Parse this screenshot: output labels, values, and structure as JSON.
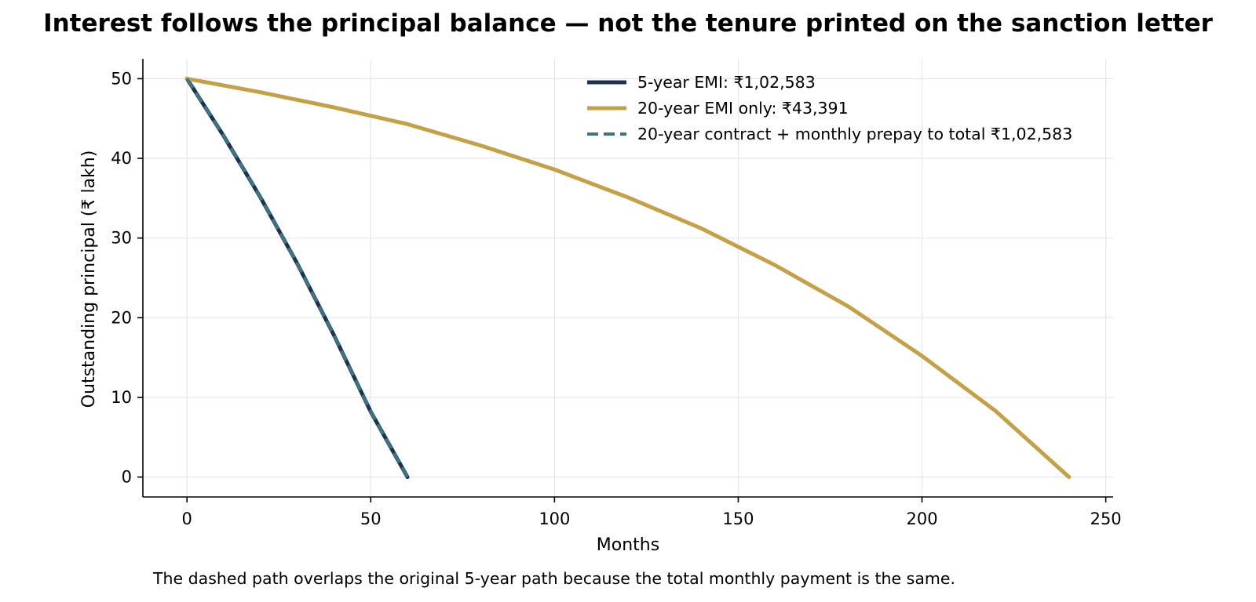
{
  "chart_data": {
    "type": "line",
    "title": "Interest follows the principal balance — not the tenure printed on the sanction letter",
    "xlabel": "Months",
    "ylabel": "Outstanding principal (₹ lakh)",
    "caption": "The dashed path overlaps the original 5-year path because the total monthly payment is the same.",
    "xlim": [
      -12,
      252
    ],
    "ylim": [
      -2.5,
      52.5
    ],
    "xticks": [
      0,
      50,
      100,
      150,
      200,
      250
    ],
    "yticks": [
      0,
      10,
      20,
      30,
      40,
      50
    ],
    "grid": true,
    "legend_position": "top-right",
    "series": [
      {
        "name": "5-year EMI: ₹1,02,583",
        "color": "#1b3350",
        "style": "solid",
        "x": [
          0,
          10,
          20,
          30,
          40,
          50,
          60
        ],
        "y": [
          50.0,
          42.8,
          35.1,
          26.8,
          17.8,
          8.2,
          0.0
        ]
      },
      {
        "name": "20-year EMI only: ₹43,391",
        "color": "#c4a047",
        "style": "solid",
        "x": [
          0,
          20,
          40,
          60,
          80,
          100,
          120,
          140,
          160,
          180,
          200,
          220,
          240
        ],
        "y": [
          50.0,
          48.3,
          46.4,
          44.3,
          41.6,
          38.6,
          35.1,
          31.2,
          26.6,
          21.4,
          15.2,
          8.3,
          0.0
        ]
      },
      {
        "name": "20-year contract + monthly prepay to total ₹1,02,583",
        "color": "#3d7585",
        "style": "dashed",
        "x": [
          0,
          10,
          20,
          30,
          40,
          50,
          60
        ],
        "y": [
          50.0,
          42.8,
          35.1,
          26.8,
          17.8,
          8.2,
          0.0
        ]
      }
    ]
  }
}
